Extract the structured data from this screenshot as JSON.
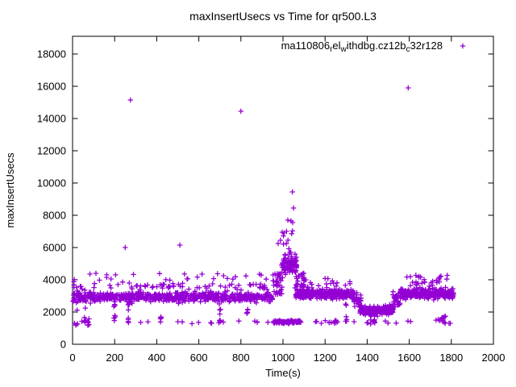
{
  "window": {
    "background": "#ffffff",
    "border_color": "#000000"
  },
  "chart_data": {
    "type": "scatter",
    "title": "maxInsertUsecs vs Time for qr500.L3",
    "xlabel": "Time(s)",
    "ylabel": "maxInsertUsecs",
    "xlim": [
      0,
      2000
    ],
    "ylim": [
      0,
      19100
    ],
    "xticks": [
      0,
      200,
      400,
      600,
      800,
      1000,
      1200,
      1400,
      1600,
      1800,
      2000
    ],
    "yticks": [
      0,
      2000,
      4000,
      6000,
      8000,
      10000,
      12000,
      14000,
      16000,
      18000
    ],
    "grid": false,
    "legend_position": "top-right-inside",
    "marker_glyph": "plus-icon",
    "series": [
      {
        "name": "ma110806_rel_withdbg.cz12b_c32r128",
        "label_segments": [
          {
            "text": "ma110806"
          },
          {
            "text": "r",
            "sub": true
          },
          {
            "text": "el"
          },
          {
            "text": "w",
            "sub": true
          },
          {
            "text": "ithdbg.cz12b"
          },
          {
            "text": "c",
            "sub": true
          },
          {
            "text": "32r128"
          }
        ],
        "marker": "plus",
        "color": "#9400D3",
        "seed": 42,
        "outlier_points": [
          [
            275,
            15150
          ],
          [
            800,
            14450
          ],
          [
            1595,
            15900
          ],
          [
            250,
            6000
          ],
          [
            510,
            6150
          ],
          [
            1045,
            9450
          ],
          [
            1050,
            8450
          ],
          [
            1023,
            7700
          ],
          [
            1038,
            7650
          ],
          [
            1046,
            7550
          ],
          [
            996,
            6950
          ],
          [
            1005,
            6900
          ],
          [
            988,
            6450
          ],
          [
            977,
            6250
          ]
        ],
        "point_bands": [
          {
            "t": [
              2,
              28
            ],
            "v": [
              1100,
              4400
            ],
            "n": 16,
            "dist": "uniform"
          },
          {
            "t": [
              5,
              950
            ],
            "v": [
              2500,
              3350
            ],
            "n": 620,
            "dist": "gauss"
          },
          {
            "t": [
              5,
              950
            ],
            "v": [
              3250,
              3950
            ],
            "n": 70,
            "dist": "gauss"
          },
          {
            "t": [
              30,
              945
            ],
            "v": [
              3900,
              4400
            ],
            "n": 26,
            "dist": "uniform"
          },
          {
            "t": [
              948,
              1000
            ],
            "v": [
              3000,
              4400
            ],
            "n": 35,
            "dist": "uniform"
          },
          {
            "t": [
              993,
              1065
            ],
            "v": [
              4200,
              5700
            ],
            "n": 90,
            "dist": "gauss"
          },
          {
            "t": [
              1000,
              1060
            ],
            "v": [
              5500,
              7100
            ],
            "n": 13,
            "dist": "uniform"
          },
          {
            "t": [
              1055,
              1100
            ],
            "v": [
              3300,
              4500
            ],
            "n": 28,
            "dist": "uniform"
          },
          {
            "t": [
              1060,
              1335
            ],
            "v": [
              2700,
              3500
            ],
            "n": 330,
            "dist": "gauss"
          },
          {
            "t": [
              1080,
              1320
            ],
            "v": [
              3500,
              4100
            ],
            "n": 22,
            "dist": "uniform"
          },
          {
            "t": [
              1335,
              1372
            ],
            "v": [
              2300,
              3200
            ],
            "n": 26,
            "dist": "uniform"
          },
          {
            "t": [
              1365,
              1525
            ],
            "v": [
              1750,
              2500
            ],
            "n": 230,
            "dist": "gauss"
          },
          {
            "t": [
              1520,
              1562
            ],
            "v": [
              2300,
              3300
            ],
            "n": 28,
            "dist": "uniform"
          },
          {
            "t": [
              1555,
              1810
            ],
            "v": [
              2700,
              3600
            ],
            "n": 300,
            "dist": "gauss"
          },
          {
            "t": [
              1560,
              1800
            ],
            "v": [
              3600,
              4300
            ],
            "n": 30,
            "dist": "uniform"
          },
          {
            "t": [
              955,
              1085
            ],
            "v": [
              1250,
              1520
            ],
            "n": 90,
            "dist": "gauss"
          },
          {
            "t": [
              30,
              1800
            ],
            "v": [
              1270,
              1450
            ],
            "n": 40,
            "dist": "uniform"
          },
          {
            "t": [
              1720,
              1775
            ],
            "v": [
              1350,
              1750
            ],
            "n": 12,
            "dist": "uniform"
          },
          {
            "t": [
              1160,
              1260
            ],
            "v": [
              1300,
              1500
            ],
            "n": 8,
            "dist": "uniform"
          }
        ],
        "point_streaks": [
          {
            "t": 60,
            "v": [
              1300,
              2500
            ],
            "n": 6
          },
          {
            "t": 75,
            "v": [
              1000,
              1600
            ],
            "n": 5
          },
          {
            "t": 200,
            "v": [
              1200,
              2600
            ],
            "n": 7
          },
          {
            "t": 265,
            "v": [
              1350,
              2600
            ],
            "n": 6
          },
          {
            "t": 420,
            "v": [
              1300,
              2000
            ],
            "n": 5
          },
          {
            "t": 700,
            "v": [
              1300,
              2400
            ],
            "n": 7
          },
          {
            "t": 830,
            "v": [
              1350,
              2200
            ],
            "n": 5
          },
          {
            "t": 1300,
            "v": [
              1400,
              2600
            ],
            "n": 6
          },
          {
            "t": 1415,
            "v": [
              1250,
              2100
            ],
            "n": 7
          },
          {
            "t": 1432,
            "v": [
              1300,
              1900
            ],
            "n": 5
          }
        ]
      }
    ]
  }
}
